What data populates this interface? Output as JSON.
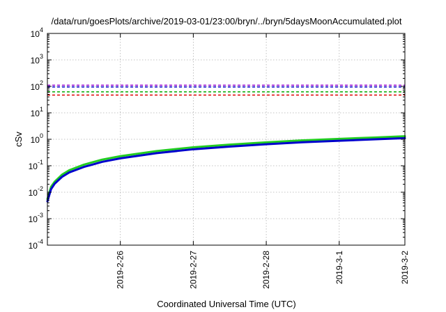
{
  "chart_data": {
    "type": "line",
    "title": "/data/run/goesPlots/archive/2019-03-01/23:00/bryn/../bryn/5daysMoonAccumulated.plot",
    "xlabel": "Coordinated Universal Time (UTC)",
    "ylabel": "cSv",
    "yscale": "log",
    "ylim": [
      0.0001,
      10000
    ],
    "xlim": [
      0,
      4.9
    ],
    "x_ticks": [
      {
        "x": 1,
        "label": "2019-2-26"
      },
      {
        "x": 2,
        "label": "2019-2-27"
      },
      {
        "x": 3,
        "label": "2019-2-28"
      },
      {
        "x": 4,
        "label": "2019-3-1"
      },
      {
        "x": 4.9,
        "label": "2019-3-2"
      }
    ],
    "y_ticks": [
      {
        "value": 0.0001,
        "base": "10",
        "exp": "-4"
      },
      {
        "value": 0.001,
        "base": "10",
        "exp": "-3"
      },
      {
        "value": 0.01,
        "base": "10",
        "exp": "-2"
      },
      {
        "value": 0.1,
        "base": "10",
        "exp": "-1"
      },
      {
        "value": 1,
        "base": "10",
        "exp": "0"
      },
      {
        "value": 10,
        "base": "10",
        "exp": "1"
      },
      {
        "value": 100,
        "base": "10",
        "exp": "2"
      },
      {
        "value": 1000,
        "base": "10",
        "exp": "3"
      },
      {
        "value": 10000,
        "base": "10",
        "exp": "4"
      }
    ],
    "grid": true,
    "legend": "none",
    "thresholds": [
      {
        "value": 110,
        "color": "#9400d3",
        "style": "dashed"
      },
      {
        "value": 95,
        "color": "#0000cc",
        "style": "dashed"
      },
      {
        "value": 62,
        "color": "#00aa00",
        "style": "dashed"
      },
      {
        "value": 47,
        "color": "#dd0000",
        "style": "dashed"
      }
    ],
    "series": [
      {
        "color": "#22cc22",
        "x": [
          0.0,
          0.05,
          0.1,
          0.2,
          0.3,
          0.5,
          0.75,
          1.0,
          1.5,
          2.0,
          2.5,
          3.0,
          3.5,
          4.0,
          4.5,
          4.9
        ],
        "y": [
          0.0055,
          0.016,
          0.025,
          0.046,
          0.068,
          0.11,
          0.17,
          0.23,
          0.36,
          0.5,
          0.63,
          0.77,
          0.91,
          1.04,
          1.17,
          1.3
        ]
      },
      {
        "color": "#0000cc",
        "x": [
          0.0,
          0.05,
          0.1,
          0.2,
          0.3,
          0.5,
          0.75,
          1.0,
          1.5,
          2.0,
          2.5,
          3.0,
          3.5,
          4.0,
          4.5,
          4.9
        ],
        "y": [
          0.0045,
          0.013,
          0.021,
          0.038,
          0.056,
          0.09,
          0.14,
          0.19,
          0.3,
          0.42,
          0.53,
          0.65,
          0.77,
          0.88,
          1.0,
          1.1
        ]
      }
    ]
  }
}
